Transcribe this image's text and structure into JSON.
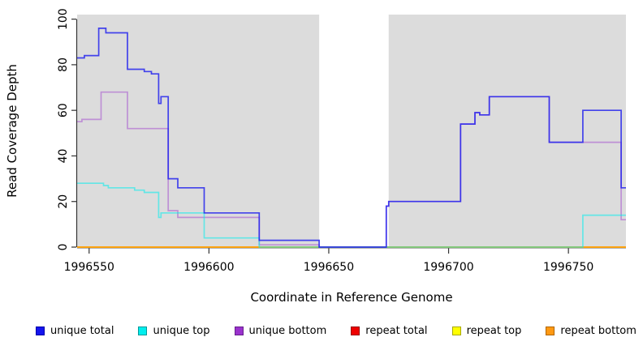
{
  "y_axis": {
    "label": "Read Coverage Depth",
    "ticks": [
      0,
      20,
      40,
      60,
      80,
      100
    ]
  },
  "x_axis": {
    "label": "Coordinate in Reference Genome",
    "ticks": [
      1996550,
      1996600,
      1996650,
      1996700,
      1996750
    ]
  },
  "chart_data": {
    "type": "line",
    "subtype": "step",
    "title": "",
    "xlabel": "Coordinate in Reference Genome",
    "ylabel": "Read Coverage Depth",
    "xlim": [
      1996545,
      1996774
    ],
    "ylim": [
      0,
      102
    ],
    "grid": false,
    "legend_position": "bottom",
    "axis_color": "#333333",
    "data_region_color": "#dcdcdc",
    "data_regions": [
      [
        1996545,
        1996646
      ],
      [
        1996675,
        1996774
      ]
    ],
    "draw_order": [
      "repeat total",
      "repeat top",
      "repeat bottom",
      "unique bottom",
      "unique top",
      "unique total"
    ],
    "series": [
      {
        "name": "unique total",
        "color": "#2020EE",
        "alpha": 0.82,
        "points": [
          [
            1996545,
            83
          ],
          [
            1996548,
            84
          ],
          [
            1996554,
            96
          ],
          [
            1996557,
            94
          ],
          [
            1996566,
            78
          ],
          [
            1996573,
            77
          ],
          [
            1996576,
            76
          ],
          [
            1996579,
            63
          ],
          [
            1996580,
            66
          ],
          [
            1996583,
            30
          ],
          [
            1996587,
            26
          ],
          [
            1996598,
            15
          ],
          [
            1996621,
            3
          ],
          [
            1996646,
            0
          ],
          [
            1996674,
            18
          ],
          [
            1996675,
            20
          ],
          [
            1996705,
            54
          ],
          [
            1996711,
            59
          ],
          [
            1996713,
            58
          ],
          [
            1996717,
            66
          ],
          [
            1996742,
            46
          ],
          [
            1996756,
            60
          ],
          [
            1996772,
            26
          ]
        ]
      },
      {
        "name": "unique top",
        "color": "#00EEEE",
        "alpha": 0.55,
        "points": [
          [
            1996545,
            28
          ],
          [
            1996556,
            27
          ],
          [
            1996558,
            26
          ],
          [
            1996569,
            25
          ],
          [
            1996573,
            24
          ],
          [
            1996579,
            13
          ],
          [
            1996580,
            15
          ],
          [
            1996598,
            4
          ],
          [
            1996621,
            0
          ],
          [
            1996756,
            14
          ]
        ]
      },
      {
        "name": "unique bottom",
        "color": "#9A32CD",
        "alpha": 0.45,
        "points": [
          [
            1996545,
            55
          ],
          [
            1996547,
            56
          ],
          [
            1996555,
            68
          ],
          [
            1996566,
            52
          ],
          [
            1996583,
            16
          ],
          [
            1996587,
            13
          ],
          [
            1996621,
            1
          ],
          [
            1996646,
            0
          ],
          [
            1996674,
            18
          ],
          [
            1996675,
            20
          ],
          [
            1996705,
            54
          ],
          [
            1996711,
            59
          ],
          [
            1996713,
            58
          ],
          [
            1996717,
            66
          ],
          [
            1996742,
            46
          ],
          [
            1996772,
            12
          ]
        ]
      },
      {
        "name": "repeat total",
        "color": "#DD0000",
        "alpha": 0.85,
        "points": [
          [
            1996545,
            0
          ]
        ]
      },
      {
        "name": "repeat top",
        "color": "#FFFF00",
        "alpha": 0.9,
        "points": [
          [
            1996545,
            0
          ]
        ]
      },
      {
        "name": "repeat bottom",
        "color": "#FF9912",
        "alpha": 0.9,
        "points": [
          [
            1996545,
            0
          ]
        ]
      }
    ]
  },
  "legend": {
    "items": [
      {
        "label": "unique total",
        "color": "#1414EE",
        "border": "#0000A8"
      },
      {
        "label": "unique top",
        "color": "#00EEEE",
        "border": "#009999"
      },
      {
        "label": "unique bottom",
        "color": "#9A32CD",
        "border": "#661F8C"
      },
      {
        "label": "repeat total",
        "color": "#EE0000",
        "border": "#990000"
      },
      {
        "label": "repeat top",
        "color": "#FFFF00",
        "border": "#A8A800"
      },
      {
        "label": "repeat bottom",
        "color": "#FF9912",
        "border": "#B06500"
      }
    ]
  }
}
